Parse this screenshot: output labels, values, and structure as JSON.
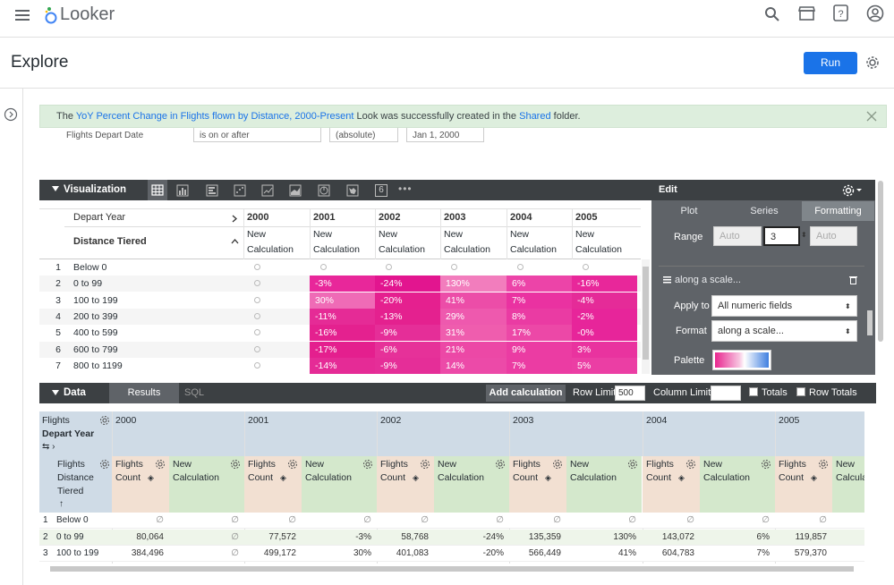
{
  "app": {
    "name": "Looker",
    "menu_icon": "hamburger-icon",
    "logo_icon": "looker-logo-icon"
  },
  "top_icons": [
    "search-icon",
    "marketplace-icon",
    "help-icon",
    "account-icon"
  ],
  "explore": {
    "title": "Explore",
    "run_label": "Run",
    "settings_icon": "gear-icon"
  },
  "banner": {
    "prefix": "The ",
    "link": "YoY Percent Change in Flights flown by Distance, 2000-Present",
    "middle": " Look was successfully created in the ",
    "folder": "Shared",
    "suffix": " folder."
  },
  "filter": {
    "field": "Flights Depart Date",
    "op": "is on or after",
    "mode": "(absolute)",
    "value": "Jan 1, 2000"
  },
  "visualization": {
    "label": "Visualization",
    "types": [
      "table-icon",
      "column-chart-icon",
      "bar-chart-icon",
      "scatter-icon",
      "line-icon",
      "area-icon",
      "pie-icon",
      "map-icon",
      "single-value-icon",
      "more-icon"
    ],
    "single_value": "6"
  },
  "vis_table": {
    "pivot_label": "Depart Year",
    "dim_label": "Distance Tiered",
    "measure_line1": "New",
    "measure_line2": "Calculation",
    "years": [
      "2000",
      "2001",
      "2002",
      "2003",
      "2004",
      "2005"
    ],
    "rows": [
      {
        "n": "1",
        "tier": "Below 0",
        "vals": [
          "",
          "",
          "",
          "",
          "",
          ""
        ]
      },
      {
        "n": "2",
        "tier": "0 to 99",
        "vals": [
          "",
          "-3%",
          "-24%",
          "130%",
          "6%",
          "-16%"
        ]
      },
      {
        "n": "3",
        "tier": "100 to 199",
        "vals": [
          "",
          "30%",
          "-20%",
          "41%",
          "7%",
          "-4%"
        ]
      },
      {
        "n": "4",
        "tier": "200 to 399",
        "vals": [
          "",
          "-11%",
          "-13%",
          "29%",
          "8%",
          "-2%"
        ]
      },
      {
        "n": "5",
        "tier": "400 to 599",
        "vals": [
          "",
          "-16%",
          "-9%",
          "31%",
          "17%",
          "-0%"
        ]
      },
      {
        "n": "6",
        "tier": "600 to 799",
        "vals": [
          "",
          "-17%",
          "-6%",
          "21%",
          "9%",
          "3%"
        ]
      },
      {
        "n": "7",
        "tier": "800 to 1199",
        "vals": [
          "",
          "-14%",
          "-9%",
          "14%",
          "7%",
          "5%"
        ]
      }
    ]
  },
  "edit": {
    "title": "Edit",
    "tabs": [
      "Plot",
      "Series",
      "Formatting"
    ],
    "range_label": "Range",
    "range_min": "Auto",
    "range_mid": "3",
    "range_max": "Auto",
    "rule_label": "along a scale...",
    "apply_label": "Apply to",
    "apply_value": "All numeric fields",
    "format_label": "Format",
    "format_value": "along a scale...",
    "palette_label": "Palette"
  },
  "data": {
    "label": "Data",
    "tabs": [
      "Results",
      "SQL"
    ],
    "add_calc": "Add calculation",
    "row_limit_label": "Row Limit",
    "row_limit": "500",
    "col_limit_label": "Column Limit",
    "col_limit": "",
    "totals": "Totals",
    "row_totals": "Row Totals",
    "pivot_header": "Flights",
    "pivot_header2": "Depart Year",
    "years": [
      "2000",
      "2001",
      "2002",
      "2003",
      "2004",
      "2005"
    ],
    "dim_l1": "Flights",
    "dim_l2": "Distance",
    "dim_l3": "Tiered",
    "m1_l1": "Flights",
    "m1_l2": "Count",
    "m2_l1": "New",
    "m2_l2": "Calculation",
    "m2_cut": "Calcula",
    "null_symbol": "∅",
    "rows": [
      {
        "n": "1",
        "tier": "Below 0",
        "cells": [
          "∅",
          "∅",
          "∅",
          "∅",
          "∅",
          "∅",
          "∅",
          "∅",
          "∅",
          "∅",
          "∅",
          ""
        ]
      },
      {
        "n": "2",
        "tier": "0 to 99",
        "cells": [
          "80,064",
          "∅",
          "77,572",
          "-3%",
          "58,768",
          "-24%",
          "135,359",
          "130%",
          "143,072",
          "6%",
          "119,857",
          ""
        ]
      },
      {
        "n": "3",
        "tier": "100 to 199",
        "cells": [
          "384,496",
          "∅",
          "499,172",
          "30%",
          "401,083",
          "-20%",
          "566,449",
          "41%",
          "604,783",
          "7%",
          "579,370",
          ""
        ]
      }
    ]
  }
}
